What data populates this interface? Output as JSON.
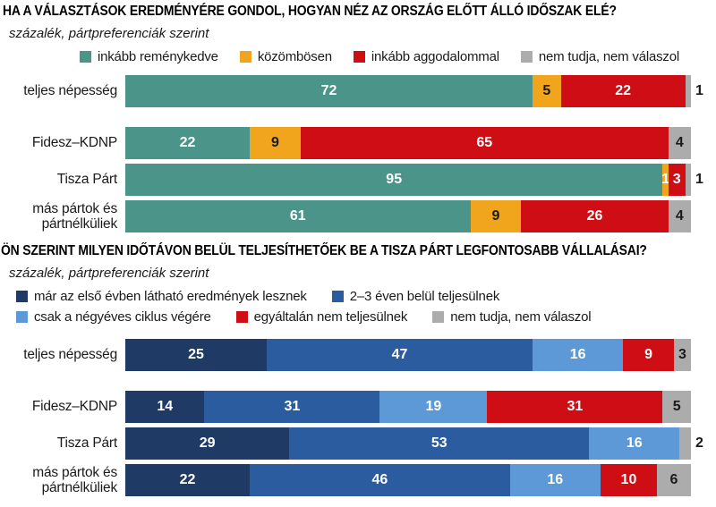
{
  "colors": {
    "teal": "#4B9489",
    "orange": "#F0A51C",
    "red": "#CE0E14",
    "gray": "#ACACAC",
    "navy": "#203A66",
    "blue": "#2B5C9F",
    "lightblue": "#5D99D6",
    "label_dark": "#1A1A1A",
    "label_light": "#FFFFFF"
  },
  "chart_data": [
    {
      "type": "bar",
      "stacked": true,
      "orientation": "horizontal",
      "title": "HA A VÁLASZTÁSOK EREDMÉNYÉRE GONDOL, HOGYAN NÉZ AZ ORSZÁG ELŐTT ÁLLÓ IDŐSZAK ELÉ?",
      "subtitle": "százalék, pártpreferenciák szerint",
      "unit": "percent",
      "xlim": [
        0,
        100
      ],
      "grid": false,
      "legend_position": "top",
      "legend_align": "center",
      "legend_lines": [
        [
          0,
          1,
          2,
          3
        ]
      ],
      "categories": [
        "teljes népesség",
        "Fidesz–KDNP",
        "Tisza Párt",
        "más pártok és pártnélküliek"
      ],
      "series": [
        {
          "name": "inkább reménykedve",
          "color": "teal",
          "values": [
            72,
            22,
            95,
            61
          ]
        },
        {
          "name": "közömbösen",
          "color": "orange",
          "values": [
            5,
            9,
            1,
            9
          ]
        },
        {
          "name": "inkább aggodalommal",
          "color": "red",
          "values": [
            22,
            65,
            3,
            26
          ]
        },
        {
          "name": "nem tudja, nem válaszol",
          "color": "gray",
          "values": [
            1,
            4,
            1,
            4
          ]
        }
      ]
    },
    {
      "type": "bar",
      "stacked": true,
      "orientation": "horizontal",
      "title": "ÖN SZERINT MILYEN IDŐTÁVON BELÜL TELJESÍTHETŐEK BE A TISZA PÁRT LEGFONTOSABB VÁLLALÁSAI?",
      "subtitle": "százalék, pártpreferenciák szerint",
      "unit": "percent",
      "xlim": [
        0,
        100
      ],
      "grid": false,
      "legend_position": "top",
      "legend_align": "left",
      "legend_lines": [
        [
          0,
          1
        ],
        [
          2,
          3,
          4
        ]
      ],
      "categories": [
        "teljes népesség",
        "Fidesz–KDNP",
        "Tisza Párt",
        "más pártok és pártnélküliek"
      ],
      "series": [
        {
          "name": "már az első évben látható eredmények lesznek",
          "color": "navy",
          "values": [
            25,
            14,
            29,
            22
          ]
        },
        {
          "name": "2–3 éven belül teljesülnek",
          "color": "blue",
          "values": [
            47,
            31,
            53,
            46
          ]
        },
        {
          "name": "csak a négyéves ciklus végére",
          "color": "lightblue",
          "values": [
            16,
            19,
            16,
            16
          ]
        },
        {
          "name": "egyáltalán nem teljesülnek",
          "color": "red",
          "values": [
            9,
            31,
            0,
            10
          ]
        },
        {
          "name": "nem tudja, nem válaszol",
          "color": "gray",
          "values": [
            3,
            5,
            2,
            6
          ]
        }
      ]
    }
  ]
}
